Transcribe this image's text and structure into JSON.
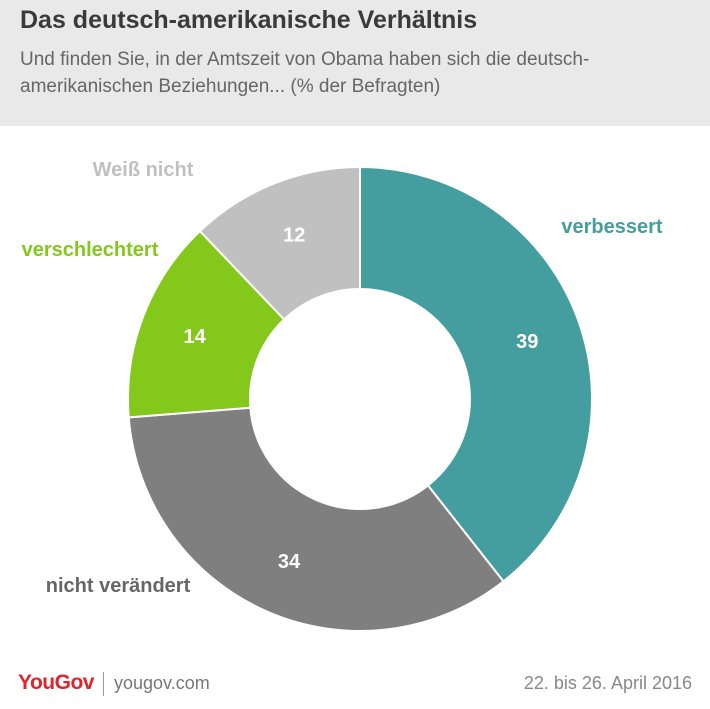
{
  "header": {
    "title": "Das deutsch-amerikanische  Verhältnis",
    "subtitle": "Und finden Sie, in der Amtszeit von Obama haben sich die deutsch-amerikanischen Beziehungen... (% der Befragten)"
  },
  "chart_data": {
    "type": "pie",
    "donut": true,
    "categories": [
      "verbessert",
      "nicht verändert",
      "verschlechtert",
      "Weiß nicht"
    ],
    "values": [
      39,
      34,
      14,
      12
    ],
    "colors": [
      "#449e9f",
      "#7f7f7f",
      "#84c81b",
      "#c0c0c0"
    ],
    "label_colors": [
      "#449e9f",
      "#666666",
      "#84c81b",
      "#c0c0c0"
    ]
  },
  "footer": {
    "logo": "YouGov",
    "site": "yougov.com",
    "date": "22. bis 26. April 2016"
  }
}
